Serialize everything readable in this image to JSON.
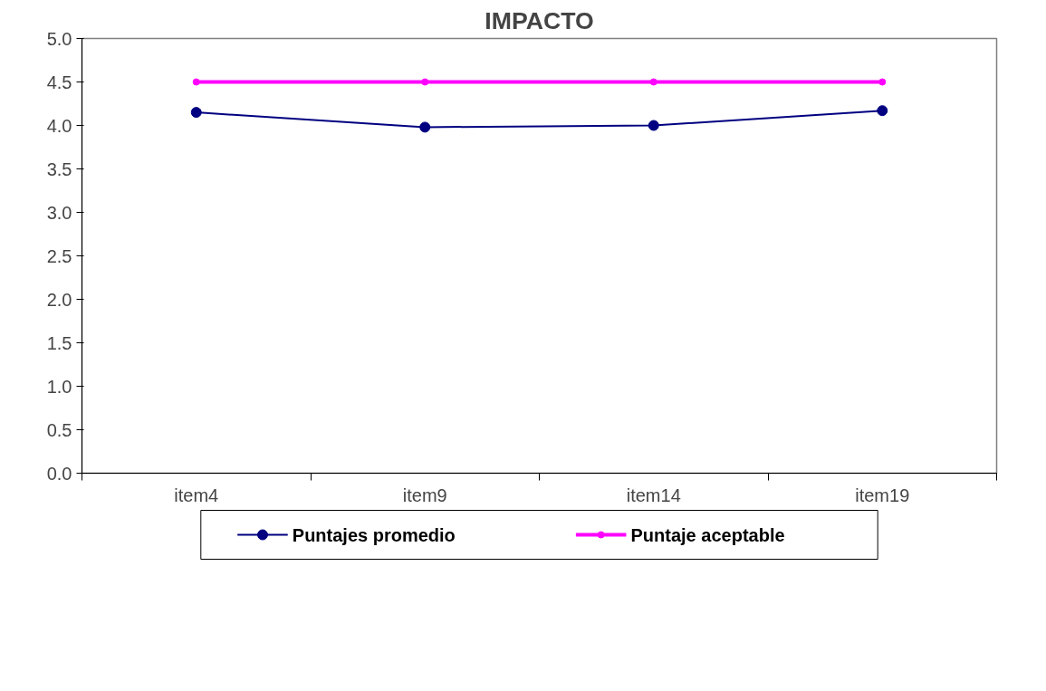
{
  "chart_data": {
    "type": "line",
    "title": "IMPACTO",
    "categories": [
      "item4",
      "item9",
      "item14",
      "item19"
    ],
    "series": [
      {
        "name": "Puntajes promedio",
        "color": "#000080",
        "values": [
          4.15,
          3.98,
          4.0,
          4.17
        ]
      },
      {
        "name": "Puntaje aceptable",
        "color": "#ff00ff",
        "values": [
          4.5,
          4.5,
          4.5,
          4.5
        ]
      }
    ],
    "ylim": [
      0,
      5
    ],
    "yticks": [
      {
        "value": 0,
        "label": "0.0"
      },
      {
        "value": 0.5,
        "label": "0.5"
      },
      {
        "value": 1,
        "label": "1.0"
      },
      {
        "value": 1.5,
        "label": "1.5"
      },
      {
        "value": 2,
        "label": "2.0"
      },
      {
        "value": 2.5,
        "label": "2.5"
      },
      {
        "value": 3,
        "label": "3.0"
      },
      {
        "value": 3.5,
        "label": "3.5"
      },
      {
        "value": 4,
        "label": "4.0"
      },
      {
        "value": 4.5,
        "label": "4.5"
      },
      {
        "value": 5,
        "label": "5.0"
      }
    ],
    "grid": false,
    "legend": "bottom",
    "marker": "circle",
    "line_style": "solid"
  }
}
